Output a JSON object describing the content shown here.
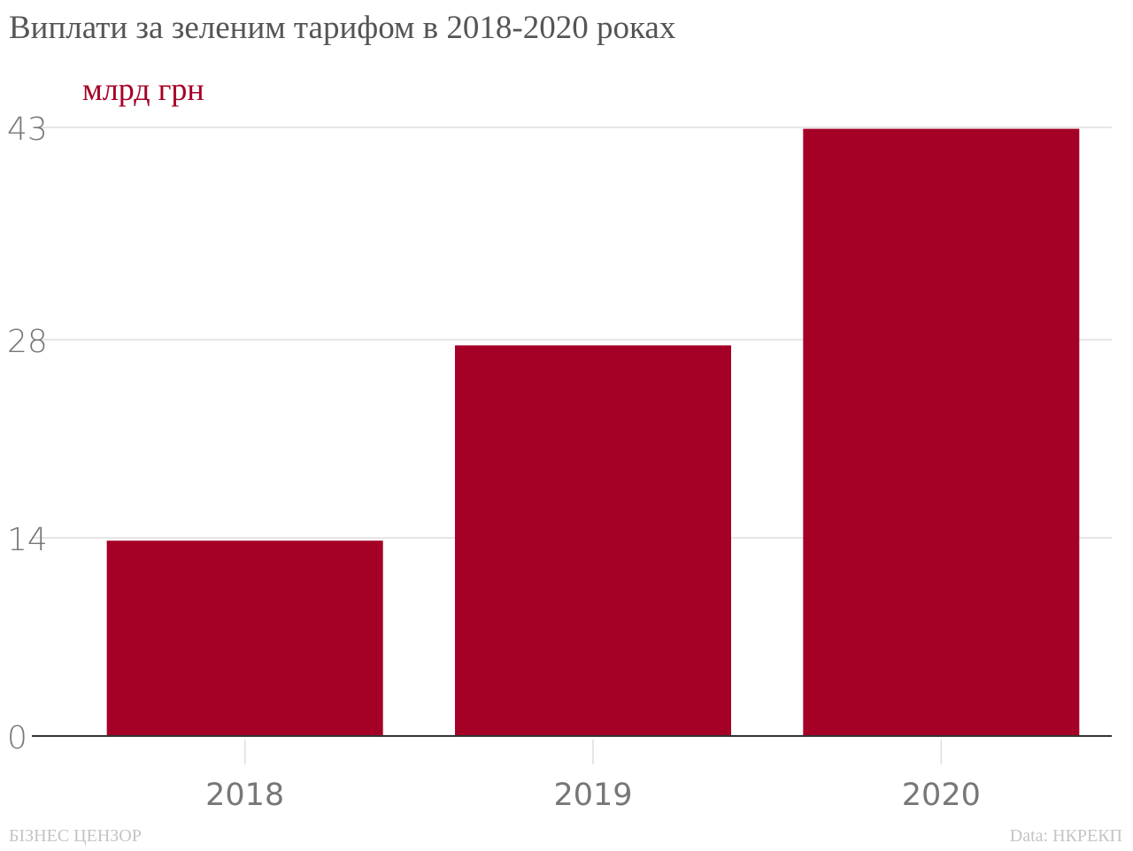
{
  "chart_data": {
    "type": "bar",
    "title": "Виплати за зеленим тарифом в 2018-2020 роках",
    "ylabel": "млрд грн",
    "xlabel": "",
    "categories": [
      "2018",
      "2019",
      "2020"
    ],
    "values": [
      13.8,
      27.6,
      42.9
    ],
    "ylim": [
      0,
      43
    ],
    "yticks": [
      0,
      14,
      28,
      43
    ],
    "grid": true,
    "bar_color": "#a50026"
  },
  "footer": {
    "brand": "БІЗНЕС ЦЕНЗОР",
    "source": "Data: НКРЕКП"
  },
  "colors": {
    "title": "#555555",
    "unit": "#a50026",
    "grid": "#dddddd",
    "axis": "#333333",
    "footer": "#c4c4c4"
  }
}
